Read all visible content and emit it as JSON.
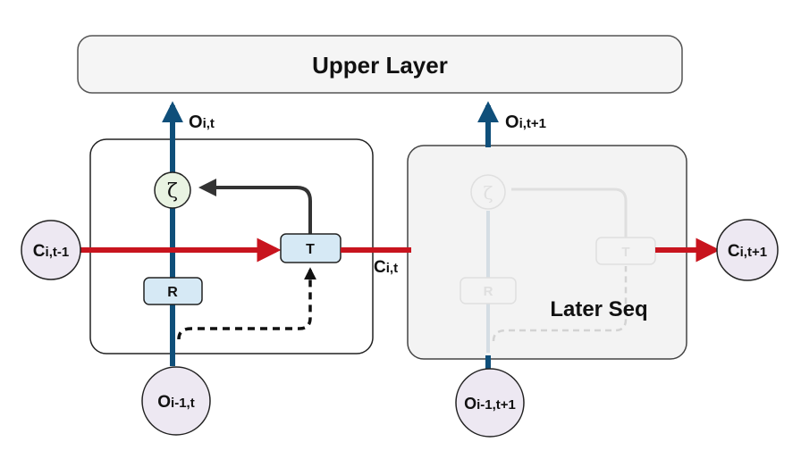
{
  "upper_layer": {
    "title": "Upper Layer"
  },
  "later_seq": {
    "title": "Later Seq"
  },
  "cell_1": {
    "zeta_symbol": "ζ",
    "r_box": "R",
    "t_box": "T",
    "output_label": {
      "base": "O",
      "sub": "i,t"
    },
    "input_node": {
      "base": "O",
      "sub": "i-1,t"
    }
  },
  "cell_2": {
    "zeta_symbol": "ζ",
    "r_box": "R",
    "t_box": "T",
    "output_label": {
      "base": "O",
      "sub": "i,t+1"
    },
    "input_node": {
      "base": "O",
      "sub": "i-1,t+1"
    }
  },
  "context_labels": {
    "c_prev": {
      "base": "C",
      "sub": "i,t-1"
    },
    "c_mid": {
      "base": "C",
      "sub": "i,t"
    },
    "c_next": {
      "base": "C",
      "sub": "i,t+1"
    }
  },
  "colors": {
    "context_arrow": "#c8141e",
    "output_arrow": "#0f4f7a",
    "box_fill": "#d6e9f5",
    "zeta_fill": "#e9f3e2",
    "node_fill": "#ede8f2",
    "later_panel": "#f3f3f3"
  }
}
